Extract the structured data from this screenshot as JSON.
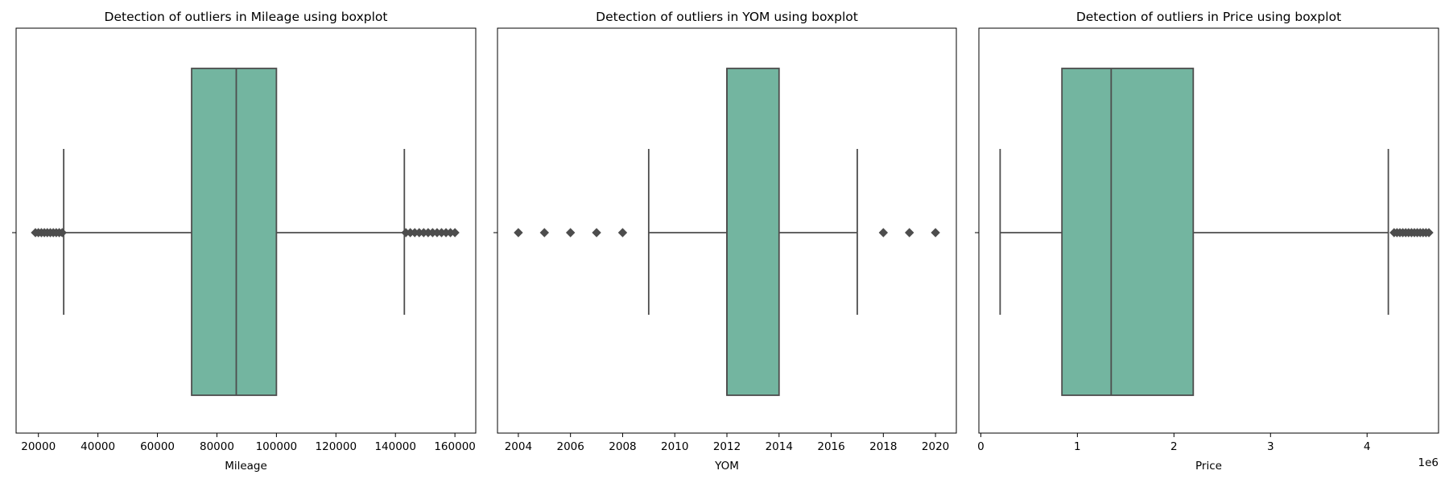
{
  "figure": {
    "background": "#ffffff"
  },
  "chart_data": [
    {
      "type": "box",
      "title": "Detection of outliers in Mileage using boxplot",
      "xlabel": "Mileage",
      "ylabel": "",
      "xlim": [
        12500,
        167000
      ],
      "xticks": [
        20000,
        40000,
        60000,
        80000,
        100000,
        120000,
        140000,
        160000
      ],
      "xtick_labels": [
        "20000",
        "40000",
        "60000",
        "80000",
        "100000",
        "120000",
        "140000",
        "160000"
      ],
      "offset_label": "",
      "box": {
        "whisker_low": 28500,
        "q1": 71500,
        "median": 86500,
        "q3": 100000,
        "whisker_high": 143000
      },
      "outliers": [
        19000,
        20000,
        21000,
        22000,
        23000,
        24000,
        25000,
        26000,
        27000,
        28000,
        143500,
        145000,
        146500,
        148000,
        149500,
        151000,
        152500,
        154000,
        155500,
        157000,
        158500,
        160000
      ],
      "color": "#73b5a0",
      "grid": false
    },
    {
      "type": "box",
      "title": "Detection of outliers in YOM using boxplot",
      "xlabel": "YOM",
      "ylabel": "",
      "xlim": [
        2003.2,
        2020.8
      ],
      "xticks": [
        2004,
        2006,
        2008,
        2010,
        2012,
        2014,
        2016,
        2018,
        2020
      ],
      "xtick_labels": [
        "2004",
        "2006",
        "2008",
        "2010",
        "2012",
        "2014",
        "2016",
        "2018",
        "2020"
      ],
      "offset_label": "",
      "box": {
        "whisker_low": 2009,
        "q1": 2012,
        "median": 2012,
        "q3": 2014,
        "whisker_high": 2017
      },
      "outliers": [
        2004,
        2005,
        2006,
        2007,
        2008,
        2018,
        2019,
        2020
      ],
      "color": "#73b5a0",
      "grid": false
    },
    {
      "type": "box",
      "title": "Detection of outliers in Price using boxplot",
      "xlabel": "Price",
      "ylabel": "",
      "xlim": [
        -0.02,
        4.74
      ],
      "xticks": [
        0,
        1,
        2,
        3,
        4
      ],
      "xtick_labels": [
        "0",
        "1",
        "2",
        "3",
        "4"
      ],
      "offset_label": "1e6",
      "box": {
        "whisker_low": 0.2,
        "q1": 0.84,
        "median": 1.35,
        "q3": 2.2,
        "whisker_high": 4.22
      },
      "outliers": [
        4.28,
        4.31,
        4.34,
        4.37,
        4.4,
        4.43,
        4.46,
        4.49,
        4.52,
        4.55,
        4.58,
        4.61,
        4.64
      ],
      "color": "#73b5a0",
      "grid": false
    }
  ]
}
